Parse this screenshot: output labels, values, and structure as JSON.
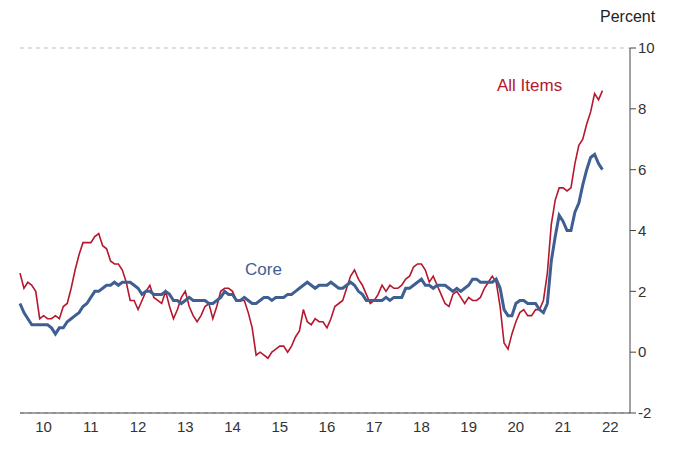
{
  "chart_data": {
    "type": "line",
    "y_label": "Percent",
    "grid": true,
    "ylim": [
      -2,
      10
    ],
    "yticks": [
      -2,
      0,
      2,
      4,
      6,
      8,
      10
    ],
    "categories": [
      null,
      null,
      null,
      null,
      null,
      null,
      "10",
      null,
      null,
      null,
      null,
      null,
      null,
      null,
      null,
      null,
      null,
      null,
      "11",
      null,
      null,
      null,
      null,
      null,
      null,
      null,
      null,
      null,
      null,
      null,
      "12",
      null,
      null,
      null,
      null,
      null,
      null,
      null,
      null,
      null,
      null,
      null,
      "13",
      null,
      null,
      null,
      null,
      null,
      null,
      null,
      null,
      null,
      null,
      null,
      "14",
      null,
      null,
      null,
      null,
      null,
      null,
      null,
      null,
      null,
      null,
      null,
      "15",
      null,
      null,
      null,
      null,
      null,
      null,
      null,
      null,
      null,
      null,
      null,
      "16",
      null,
      null,
      null,
      null,
      null,
      null,
      null,
      null,
      null,
      null,
      null,
      "17",
      null,
      null,
      null,
      null,
      null,
      null,
      null,
      null,
      null,
      null,
      null,
      "18",
      null,
      null,
      null,
      null,
      null,
      null,
      null,
      null,
      null,
      null,
      null,
      "19",
      null,
      null,
      null,
      null,
      null,
      null,
      null,
      null,
      null,
      null,
      null,
      "20",
      null,
      null,
      null,
      null,
      null,
      null,
      null,
      null,
      null,
      null,
      null,
      "21",
      null,
      null,
      null,
      null,
      null,
      null,
      null,
      null,
      null,
      null,
      null,
      "22",
      null,
      null,
      null,
      null,
      null
    ],
    "series": [
      {
        "name": "All Items",
        "color": "#b5172f",
        "values": [
          2.6,
          2.1,
          2.3,
          2.2,
          2.0,
          1.1,
          1.2,
          1.1,
          1.1,
          1.2,
          1.1,
          1.5,
          1.6,
          2.1,
          2.7,
          3.2,
          3.6,
          3.6,
          3.6,
          3.8,
          3.9,
          3.5,
          3.4,
          3.0,
          2.9,
          2.9,
          2.7,
          2.3,
          1.7,
          1.7,
          1.4,
          1.7,
          2.0,
          2.2,
          1.8,
          1.7,
          1.6,
          2.0,
          1.5,
          1.1,
          1.4,
          1.8,
          2.0,
          1.5,
          1.2,
          1.0,
          1.2,
          1.5,
          1.6,
          1.1,
          1.5,
          2.0,
          2.1,
          2.1,
          2.0,
          1.7,
          1.7,
          1.7,
          1.3,
          0.8,
          -0.1,
          0.0,
          -0.1,
          -0.2,
          0.0,
          0.1,
          0.2,
          0.2,
          0.0,
          0.2,
          0.5,
          0.7,
          1.4,
          1.0,
          0.9,
          1.1,
          1.0,
          1.0,
          0.8,
          1.1,
          1.5,
          1.6,
          1.7,
          2.1,
          2.5,
          2.7,
          2.4,
          2.2,
          1.9,
          1.6,
          1.7,
          1.9,
          2.2,
          2.0,
          2.2,
          2.1,
          2.1,
          2.2,
          2.4,
          2.5,
          2.8,
          2.9,
          2.9,
          2.7,
          2.3,
          2.5,
          2.2,
          1.9,
          1.6,
          1.5,
          1.9,
          2.0,
          1.8,
          1.6,
          1.8,
          1.7,
          1.7,
          1.8,
          2.1,
          2.3,
          2.5,
          2.3,
          1.5,
          0.3,
          0.1,
          0.6,
          1.0,
          1.3,
          1.4,
          1.2,
          1.2,
          1.4,
          1.4,
          1.7,
          2.6,
          4.2,
          5.0,
          5.4,
          5.4,
          5.3,
          5.4,
          6.2,
          6.8,
          7.0,
          7.5,
          7.9,
          8.5,
          8.3,
          8.6,
          null,
          null,
          null,
          null,
          null,
          null,
          null
        ]
      },
      {
        "name": "Core",
        "color": "#3f5f93",
        "values": [
          1.6,
          1.3,
          1.1,
          0.9,
          0.9,
          0.9,
          0.9,
          0.9,
          0.8,
          0.6,
          0.8,
          0.8,
          1.0,
          1.1,
          1.2,
          1.3,
          1.5,
          1.6,
          1.8,
          2.0,
          2.0,
          2.1,
          2.2,
          2.2,
          2.3,
          2.2,
          2.3,
          2.3,
          2.3,
          2.2,
          2.1,
          1.9,
          2.0,
          2.0,
          1.9,
          1.9,
          1.9,
          2.0,
          1.9,
          1.7,
          1.7,
          1.6,
          1.7,
          1.8,
          1.7,
          1.7,
          1.7,
          1.7,
          1.6,
          1.6,
          1.7,
          1.8,
          2.0,
          1.9,
          1.9,
          1.7,
          1.7,
          1.8,
          1.7,
          1.6,
          1.6,
          1.7,
          1.8,
          1.8,
          1.7,
          1.8,
          1.8,
          1.8,
          1.9,
          1.9,
          2.0,
          2.1,
          2.2,
          2.3,
          2.2,
          2.1,
          2.2,
          2.2,
          2.2,
          2.3,
          2.2,
          2.1,
          2.1,
          2.2,
          2.3,
          2.2,
          2.0,
          1.9,
          1.7,
          1.7,
          1.7,
          1.7,
          1.7,
          1.8,
          1.7,
          1.8,
          1.8,
          1.8,
          2.1,
          2.1,
          2.2,
          2.3,
          2.4,
          2.2,
          2.2,
          2.1,
          2.2,
          2.2,
          2.2,
          2.1,
          2.0,
          2.1,
          2.0,
          2.1,
          2.2,
          2.4,
          2.4,
          2.3,
          2.3,
          2.3,
          2.3,
          2.4,
          2.1,
          1.4,
          1.2,
          1.2,
          1.6,
          1.7,
          1.7,
          1.6,
          1.6,
          1.6,
          1.4,
          1.3,
          1.6,
          3.0,
          3.8,
          4.5,
          4.3,
          4.0,
          4.0,
          4.6,
          4.9,
          5.5,
          6.0,
          6.4,
          6.5,
          6.2,
          6.0,
          null,
          null,
          null,
          null,
          null,
          null,
          null
        ]
      }
    ]
  }
}
